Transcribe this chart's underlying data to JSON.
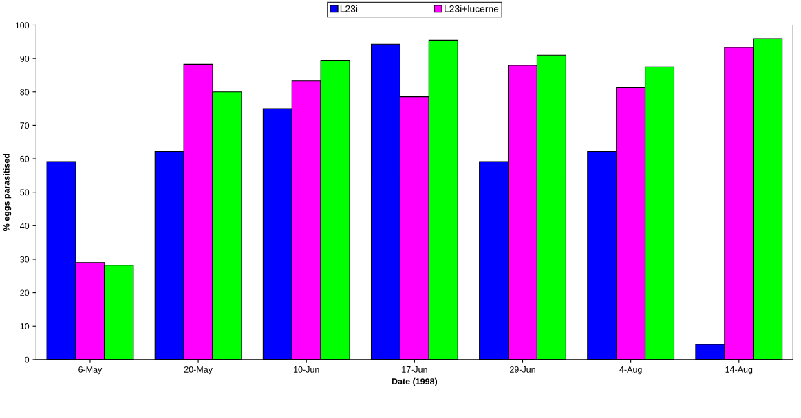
{
  "chart_data": {
    "type": "bar",
    "xlabel": "Date (1998)",
    "ylabel": "% eggs parasitised",
    "categories": [
      "6-May",
      "20-May",
      "10-Jun",
      "17-Jun",
      "29-Jun",
      "4-Aug",
      "14-Aug"
    ],
    "series": [
      {
        "name": "L23i",
        "color": "#0000ff",
        "values": [
          59.2,
          62.2,
          75,
          94.3,
          59.2,
          62.2,
          4.5
        ]
      },
      {
        "name": "L23i+lucerne",
        "color": "#ff00ff",
        "values": [
          29,
          88.3,
          83.3,
          78.6,
          88,
          81.3,
          93.3
        ]
      },
      {
        "color": "#00ff00",
        "values": [
          28.2,
          80,
          89.5,
          95.5,
          91,
          87.5,
          96
        ]
      }
    ],
    "ylim": [
      0,
      100
    ],
    "yticks": [
      0,
      10,
      20,
      30,
      40,
      50,
      60,
      70,
      80,
      90,
      100
    ],
    "grid": false,
    "legend": "top"
  }
}
